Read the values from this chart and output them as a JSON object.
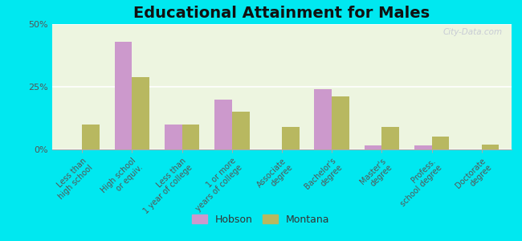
{
  "title": "Educational Attainment for Males",
  "categories": [
    "Less than\nhigh school",
    "High school\nor equiv.",
    "Less than\n1 year of college",
    "1 or more\nyears of college",
    "Associate\ndegree",
    "Bachelor's\ndegree",
    "Master's\ndegree",
    "Profess.\nschool degree",
    "Doctorate\ndegree"
  ],
  "hobson": [
    0.0,
    43.0,
    10.0,
    20.0,
    0.0,
    24.0,
    1.5,
    1.5,
    0.0
  ],
  "montana": [
    10.0,
    29.0,
    10.0,
    15.0,
    9.0,
    21.0,
    9.0,
    5.0,
    2.0
  ],
  "hobson_color": "#cc99cc",
  "montana_color": "#b8b860",
  "ylim": [
    0,
    50
  ],
  "yticks": [
    0,
    25,
    50
  ],
  "ytick_labels": [
    "0%",
    "25%",
    "50%"
  ],
  "bg_outer": "#00e8f0",
  "bg_chart_top": "#e8f5e0",
  "bg_chart_bottom": "#f5ffe8",
  "legend_hobson": "Hobson",
  "legend_montana": "Montana",
  "title_fontsize": 14,
  "bar_width": 0.35
}
